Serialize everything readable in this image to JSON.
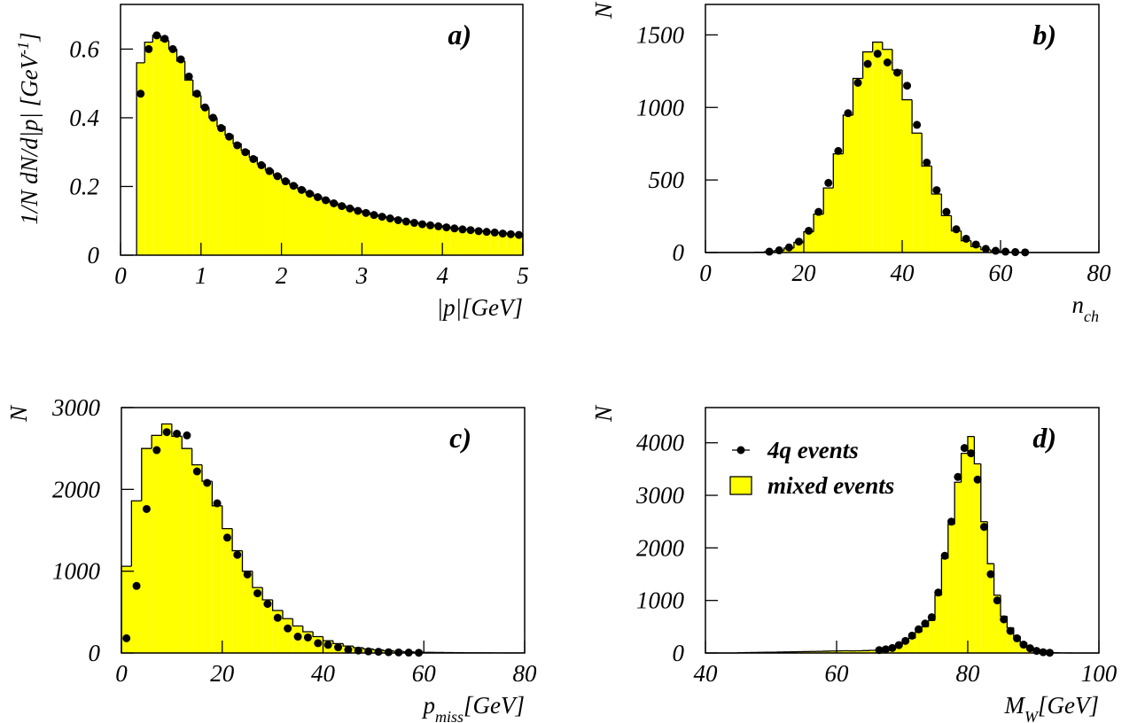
{
  "chart_data": [
    {
      "type": "histogram",
      "label": "a)",
      "xlabel": [
        {
          "text": "|p|[GeV]"
        }
      ],
      "ylabel": [
        {
          "text": "1/N dN/d|p| [GeV"
        },
        {
          "text": "-1",
          "sup": true
        },
        {
          "text": "]"
        }
      ],
      "xlim": [
        0,
        5
      ],
      "ylim": [
        0,
        0.73
      ],
      "xticks": [
        0,
        1,
        2,
        3,
        4,
        5
      ],
      "yticks": [
        0,
        0.2,
        0.4,
        0.6
      ],
      "bins": [
        0.2,
        0.3,
        0.4,
        0.5,
        0.6,
        0.7,
        0.8,
        0.9,
        1.0,
        1.1,
        1.2,
        1.3,
        1.4,
        1.5,
        1.6,
        1.7,
        1.8,
        1.9,
        2.0,
        2.1,
        2.2,
        2.3,
        2.4,
        2.5,
        2.6,
        2.7,
        2.8,
        2.9,
        3.0,
        3.1,
        3.2,
        3.3,
        3.4,
        3.5,
        3.6,
        3.7,
        3.8,
        3.9,
        4.0,
        4.1,
        4.2,
        4.3,
        4.4,
        4.5,
        4.6,
        4.7,
        4.8,
        4.9,
        5.0
      ],
      "series": [
        {
          "color": "#ffff00",
          "values": [
            0.56,
            0.62,
            0.64,
            0.625,
            0.6,
            0.565,
            0.51,
            0.465,
            0.43,
            0.4,
            0.375,
            0.35,
            0.325,
            0.305,
            0.285,
            0.265,
            0.248,
            0.232,
            0.218,
            0.205,
            0.193,
            0.182,
            0.172,
            0.162,
            0.153,
            0.145,
            0.138,
            0.131,
            0.125,
            0.119,
            0.114,
            0.109,
            0.104,
            0.1,
            0.096,
            0.092,
            0.089,
            0.086,
            0.083,
            0.08,
            0.077,
            0.074,
            0.072,
            0.069,
            0.067,
            0.065,
            0.062,
            0.06
          ]
        },
        {
          "color": "#000000",
          "x": [
            0.25,
            0.35,
            0.45,
            0.55,
            0.65,
            0.75,
            0.85,
            0.95,
            1.05,
            1.15,
            1.25,
            1.35,
            1.45,
            1.55,
            1.65,
            1.75,
            1.85,
            1.95,
            2.05,
            2.15,
            2.25,
            2.35,
            2.45,
            2.55,
            2.65,
            2.75,
            2.85,
            2.95,
            3.05,
            3.15,
            3.25,
            3.35,
            3.45,
            3.55,
            3.65,
            3.75,
            3.85,
            3.95,
            4.05,
            4.15,
            4.25,
            4.35,
            4.45,
            4.55,
            4.65,
            4.75,
            4.85,
            4.95
          ],
          "values": [
            0.47,
            0.6,
            0.64,
            0.63,
            0.6,
            0.57,
            0.52,
            0.47,
            0.43,
            0.4,
            0.37,
            0.345,
            0.32,
            0.3,
            0.28,
            0.262,
            0.245,
            0.23,
            0.215,
            0.202,
            0.19,
            0.179,
            0.169,
            0.16,
            0.151,
            0.143,
            0.136,
            0.129,
            0.123,
            0.117,
            0.112,
            0.107,
            0.102,
            0.098,
            0.094,
            0.09,
            0.087,
            0.084,
            0.081,
            0.078,
            0.075,
            0.073,
            0.07,
            0.068,
            0.066,
            0.063,
            0.061,
            0.059
          ]
        }
      ]
    },
    {
      "type": "histogram",
      "label": "b)",
      "xlabel": [
        {
          "text": "n"
        },
        {
          "text": "ch",
          "sub": true
        }
      ],
      "ylabel": [
        {
          "text": "N"
        }
      ],
      "xlim": [
        0,
        80
      ],
      "ylim": [
        0,
        1710
      ],
      "xticks": [
        0,
        20,
        40,
        60,
        80
      ],
      "yticks": [
        0,
        500,
        1000,
        1500
      ],
      "bins": [
        0,
        2,
        4,
        6,
        8,
        10,
        12,
        14,
        16,
        18,
        20,
        22,
        24,
        26,
        28,
        30,
        32,
        34,
        36,
        38,
        40,
        42,
        44,
        46,
        48,
        50,
        52,
        54,
        56,
        58,
        60,
        62,
        64,
        66,
        68,
        70,
        72,
        74,
        76,
        78,
        80
      ],
      "series": [
        {
          "color": "#ffff00",
          "values": [
            0,
            0,
            0,
            0,
            0,
            2,
            5,
            13,
            31,
            70,
            143,
            264,
            445,
            680,
            947,
            1200,
            1383,
            1450,
            1400,
            1258,
            1053,
            823,
            596,
            403,
            254,
            149,
            81,
            41,
            20,
            9,
            4,
            1,
            0,
            0,
            0,
            0,
            0,
            0,
            0,
            0
          ]
        },
        {
          "color": "#000000",
          "x": [
            13,
            15,
            17,
            19,
            21,
            23,
            25,
            27,
            29,
            31,
            33,
            35,
            37,
            39,
            41,
            43,
            45,
            47,
            49,
            51,
            53,
            55,
            57,
            59,
            61,
            63,
            65
          ],
          "values": [
            6,
            15,
            35,
            75,
            150,
            280,
            480,
            700,
            960,
            1170,
            1300,
            1370,
            1310,
            1240,
            1150,
            880,
            620,
            430,
            280,
            160,
            95,
            55,
            25,
            12,
            6,
            3,
            1
          ]
        }
      ]
    },
    {
      "type": "histogram",
      "label": "c)",
      "xlabel": [
        {
          "text": "p"
        },
        {
          "text": "miss",
          "sub": true
        },
        {
          "text": "[GeV]"
        }
      ],
      "ylabel": [
        {
          "text": "N"
        }
      ],
      "xlim": [
        0,
        80
      ],
      "ylim": [
        0,
        3000
      ],
      "xticks": [
        0,
        20,
        40,
        60,
        80
      ],
      "yticks": [
        0,
        1000,
        2000,
        3000
      ],
      "bins": [
        0,
        2,
        4,
        6,
        8,
        10,
        12,
        14,
        16,
        18,
        20,
        22,
        24,
        26,
        28,
        30,
        32,
        34,
        36,
        38,
        40,
        42,
        44,
        46,
        48,
        50,
        52,
        54,
        56,
        58,
        60,
        62,
        64,
        66,
        68,
        70,
        72,
        74,
        76,
        78,
        80
      ],
      "series": [
        {
          "color": "#ffff00",
          "values": [
            1060,
            1860,
            2500,
            2660,
            2800,
            2650,
            2500,
            2300,
            2100,
            1800,
            1520,
            1250,
            1000,
            800,
            650,
            520,
            420,
            330,
            260,
            200,
            150,
            115,
            85,
            65,
            50,
            38,
            28,
            20,
            15,
            11,
            8,
            6,
            5,
            4,
            3,
            2,
            2,
            1,
            1,
            1
          ]
        },
        {
          "color": "#000000",
          "x": [
            1,
            3,
            5,
            7,
            9,
            11,
            13,
            15,
            17,
            19,
            21,
            23,
            25,
            27,
            29,
            31,
            33,
            35,
            37,
            39,
            41,
            43,
            45,
            47,
            49,
            51,
            53,
            55,
            57,
            59
          ],
          "values": [
            180,
            820,
            1760,
            2480,
            2700,
            2680,
            2660,
            2220,
            2080,
            1830,
            1410,
            1200,
            960,
            730,
            600,
            430,
            300,
            200,
            190,
            120,
            100,
            70,
            40,
            30,
            20,
            15,
            10,
            7,
            5,
            3
          ]
        }
      ]
    },
    {
      "type": "histogram",
      "label": "d)",
      "legend": "upper left",
      "xlabel": [
        {
          "text": "M"
        },
        {
          "text": "W",
          "sub": true
        },
        {
          "text": "[GeV]"
        }
      ],
      "ylabel": [
        {
          "text": "N"
        }
      ],
      "xlim": [
        40,
        100
      ],
      "ylim": [
        0,
        4670
      ],
      "xticks": [
        40,
        60,
        80,
        100
      ],
      "yticks": [
        0,
        1000,
        2000,
        3000,
        4000
      ],
      "bins": [
        40,
        41,
        42,
        43,
        44,
        45,
        46,
        47,
        48,
        49,
        50,
        51,
        52,
        53,
        54,
        55,
        56,
        57,
        58,
        59,
        60,
        61,
        62,
        63,
        64,
        65,
        66,
        67,
        68,
        69,
        70,
        71,
        72,
        73,
        74,
        75,
        76,
        77,
        78,
        79,
        80,
        81,
        82,
        83,
        84,
        85,
        86,
        87,
        88,
        89,
        90,
        91,
        92,
        93,
        94,
        95,
        96,
        97,
        98,
        99,
        100
      ],
      "series": [
        {
          "name": "mixed events",
          "color": "#ffff00",
          "values": [
            0,
            0,
            0,
            0,
            0,
            5,
            8,
            10,
            12,
            15,
            15,
            18,
            20,
            22,
            25,
            28,
            30,
            32,
            35,
            38,
            40,
            42,
            40,
            42,
            45,
            50,
            60,
            75,
            100,
            140,
            200,
            280,
            400,
            500,
            620,
            1100,
            1800,
            2450,
            3250,
            3800,
            4120,
            3600,
            2500,
            1700,
            1100,
            700,
            480,
            320,
            200,
            120,
            60,
            25,
            10,
            5,
            2,
            1,
            0,
            0,
            0,
            0
          ]
        },
        {
          "name": "4q events",
          "color": "#000000",
          "x": [
            66.5,
            67.5,
            68.5,
            69.5,
            70.5,
            71.5,
            72.5,
            73.5,
            74.5,
            75.5,
            76.5,
            77.5,
            78.5,
            79.5,
            80.5,
            81.5,
            82.5,
            83.5,
            84.5,
            85.5,
            86.5,
            87.5,
            88.5,
            89.5,
            90.5,
            91.5,
            92.5
          ],
          "values": [
            55,
            70,
            95,
            150,
            230,
            330,
            450,
            560,
            680,
            1150,
            1850,
            2500,
            3350,
            3900,
            3800,
            3300,
            2400,
            1500,
            1000,
            640,
            420,
            280,
            160,
            90,
            40,
            15,
            5
          ]
        }
      ]
    }
  ]
}
